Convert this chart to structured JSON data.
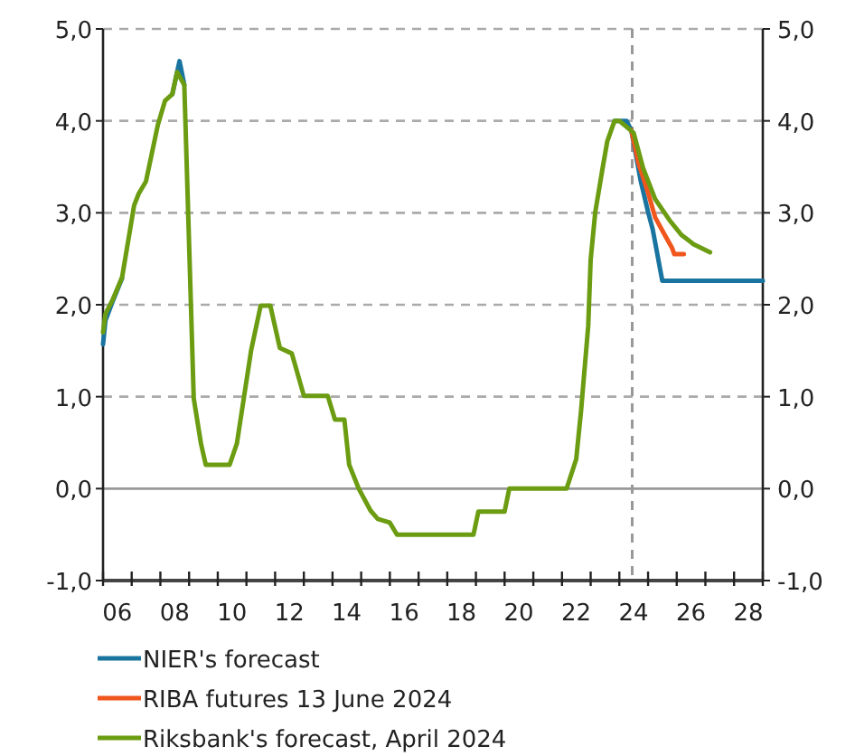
{
  "chart_data": {
    "type": "line",
    "series": [
      {
        "name": "NIER's forecast",
        "color": "#1a74a0",
        "x": [
          "2006-01",
          "2006-02",
          "2006-05",
          "2006-09",
          "2007-02",
          "2007-04",
          "2007-07",
          "2007-12",
          "2008-03",
          "2008-06",
          "2008-09",
          "2008-11",
          "2009-03",
          "2009-06",
          "2009-08",
          "2010-06",
          "2010-09",
          "2011-03",
          "2011-07",
          "2011-11",
          "2012-03",
          "2012-08",
          "2013-01",
          "2013-11",
          "2014-02",
          "2014-06",
          "2014-08",
          "2014-12",
          "2015-05",
          "2015-08",
          "2016-01",
          "2016-04",
          "2018-12",
          "2019-02",
          "2020-01",
          "2020-03",
          "2022-03",
          "2022-07",
          "2022-09",
          "2022-12",
          "2023-01",
          "2023-03",
          "2023-06",
          "2023-08",
          "2023-11",
          "2024-04",
          "2024-06",
          "2024-10",
          "2025-01",
          "2025-03",
          "2025-07",
          "2029-01"
        ],
        "values": [
          1.57,
          1.83,
          2.03,
          2.29,
          null,
          null,
          null,
          null,
          null,
          4.29,
          4.65,
          4.39,
          null,
          null,
          null,
          null,
          null,
          null,
          null,
          null,
          null,
          null,
          null,
          null,
          null,
          null,
          null,
          null,
          null,
          null,
          null,
          null,
          null,
          null,
          null,
          null,
          null,
          null,
          null,
          null,
          null,
          null,
          null,
          null,
          4.0,
          4.0,
          3.9,
          3.34,
          3.01,
          2.82,
          2.26,
          2.26
        ]
      },
      {
        "name": "RIBA futures 13 June 2024",
        "color": "#f0561e",
        "x": [
          "2024-06",
          "2024-09",
          "2025-01",
          "2025-04",
          "2025-08",
          "2025-11",
          "2025-12",
          "2026-04"
        ],
        "values": [
          3.9,
          3.54,
          3.22,
          2.95,
          2.76,
          2.62,
          2.55,
          2.55
        ]
      },
      {
        "name": "Riksbank's forecast, April 2024",
        "color": "#6b9c11",
        "x": [
          "2006-01",
          "2006-02",
          "2006-05",
          "2006-09",
          "2007-02",
          "2007-04",
          "2007-07",
          "2007-12",
          "2008-03",
          "2008-06",
          "2008-08",
          "2008-11",
          "2009-03",
          "2009-06",
          "2009-08",
          "2010-06",
          "2010-09",
          "2011-03",
          "2011-07",
          "2011-11",
          "2012-03",
          "2012-08",
          "2013-01",
          "2013-11",
          "2014-02",
          "2014-06",
          "2014-08",
          "2014-12",
          "2015-05",
          "2015-08",
          "2016-01",
          "2016-04",
          "2018-12",
          "2019-02",
          "2020-01",
          "2020-03",
          "2022-03",
          "2022-07",
          "2022-09",
          "2022-12",
          "2023-01",
          "2023-03",
          "2023-06",
          "2023-08",
          "2023-11",
          "2024-01",
          "2024-07",
          "2024-11",
          "2025-04",
          "2025-10",
          "2026-03",
          "2026-08",
          "2027-03"
        ],
        "values": [
          1.7,
          1.9,
          2.05,
          2.3,
          3.08,
          3.21,
          3.34,
          3.96,
          4.22,
          4.29,
          4.53,
          4.39,
          0.98,
          0.49,
          0.26,
          0.26,
          0.49,
          1.5,
          1.99,
          1.99,
          1.53,
          1.47,
          1.01,
          1.01,
          0.75,
          0.75,
          0.26,
          0.0,
          -0.24,
          -0.33,
          -0.37,
          -0.5,
          -0.5,
          -0.25,
          -0.25,
          0.0,
          0.0,
          0.32,
          0.85,
          1.77,
          2.49,
          3.01,
          3.48,
          3.78,
          4.0,
          4.0,
          3.87,
          3.48,
          3.15,
          2.92,
          2.76,
          2.66,
          2.57
        ]
      }
    ],
    "xlim": [
      "2006-01",
      "2029-01"
    ],
    "xticks": [
      {
        "value": "2006",
        "label": null
      },
      {
        "value": "2007",
        "label": null
      },
      {
        "value": "2008",
        "label": null
      },
      {
        "value": "2009",
        "label": null
      },
      {
        "value": "2010",
        "label": null
      },
      {
        "value": "2011",
        "label": null
      },
      {
        "value": "2012",
        "label": null
      },
      {
        "value": "2013",
        "label": null
      },
      {
        "value": "2014",
        "label": null
      },
      {
        "value": "2015",
        "label": null
      },
      {
        "value": "2016",
        "label": null
      },
      {
        "value": "2017",
        "label": null
      },
      {
        "value": "2018",
        "label": null
      },
      {
        "value": "2019",
        "label": null
      },
      {
        "value": "2020",
        "label": null
      },
      {
        "value": "2021",
        "label": null
      },
      {
        "value": "2022",
        "label": null
      },
      {
        "value": "2023",
        "label": null
      },
      {
        "value": "2024",
        "label": null
      },
      {
        "value": "2025",
        "label": null
      },
      {
        "value": "2026",
        "label": null
      },
      {
        "value": "2027",
        "label": null
      },
      {
        "value": "2028",
        "label": null
      },
      {
        "value": "2029",
        "label": null
      },
      {
        "value": "2006-07",
        "label": "06"
      },
      {
        "value": "2008-07",
        "label": "08"
      },
      {
        "value": "2010-07",
        "label": "10"
      },
      {
        "value": "2012-07",
        "label": "12"
      },
      {
        "value": "2014-07",
        "label": "14"
      },
      {
        "value": "2016-07",
        "label": "16"
      },
      {
        "value": "2018-07",
        "label": "18"
      },
      {
        "value": "2020-07",
        "label": "20"
      },
      {
        "value": "2022-07",
        "label": "22"
      },
      {
        "value": "2024-07",
        "label": "24"
      },
      {
        "value": "2026-07",
        "label": "26"
      },
      {
        "value": "2028-07",
        "label": "28"
      }
    ],
    "ylim": [
      -1,
      5
    ],
    "yticks": [
      {
        "value": -1,
        "label": "-1,0"
      },
      {
        "value": 0,
        "label": "0,0"
      },
      {
        "value": 1,
        "label": "1,0"
      },
      {
        "value": 2,
        "label": "2,0"
      },
      {
        "value": 3,
        "label": "3,0"
      },
      {
        "value": 4,
        "label": "4,0"
      },
      {
        "value": 5,
        "label": "5,0"
      }
    ],
    "y2lim": [
      -1,
      5
    ],
    "y2ticks": [
      {
        "value": -1,
        "label": "-1,0"
      },
      {
        "value": 0,
        "label": "0,0"
      },
      {
        "value": 1,
        "label": "1,0"
      },
      {
        "value": 2,
        "label": "2,0"
      },
      {
        "value": 3,
        "label": "3,0"
      },
      {
        "value": 4,
        "label": "4,0"
      },
      {
        "value": 5,
        "label": "5,0"
      }
    ],
    "ref_lines": [
      {
        "axis": "x",
        "value": "2024-06-13",
        "color": "#999999",
        "line_style": "dashed"
      }
    ],
    "grid": "y",
    "legend": "bottom",
    "marker": "none",
    "line_style": "solid"
  }
}
